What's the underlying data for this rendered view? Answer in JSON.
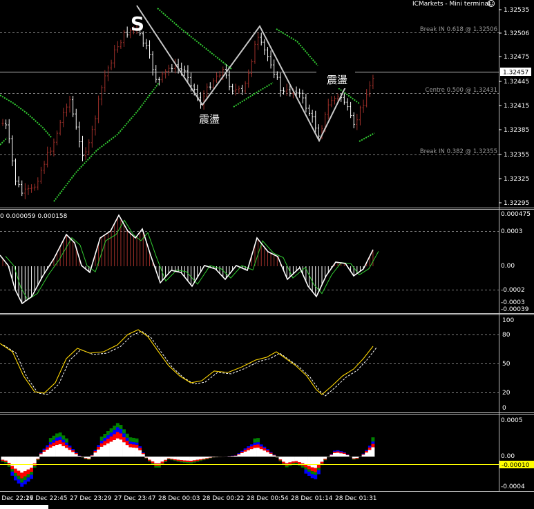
{
  "window": {
    "title": "ICMarkets - Mini terminal",
    "status_icon": "smiley-icon"
  },
  "main_chart": {
    "price_labels": [
      "1.32535",
      "1.32506",
      "1.32475",
      "1.32445",
      "1.32415",
      "1.32385",
      "1.32355",
      "1.32325",
      "1.32295"
    ],
    "current_price": "1.32457",
    "levels": [
      {
        "text": "Break IN 0.618 @ 1.32506"
      },
      {
        "text": "Centre 0.500 @ 1.32431"
      },
      {
        "text": "Break IN 0.382 @ 1.32355"
      }
    ],
    "annotations": {
      "signal": "S",
      "range_left": "震盪",
      "range_right": "震盪"
    }
  },
  "macd_panel": {
    "info": "0 0.000059 0.000158",
    "scale": [
      "0.000475",
      "0.0003",
      "0.00",
      "-0.0002",
      "-0.0003",
      "-0.00039"
    ]
  },
  "stoch_panel": {
    "scale": [
      "100",
      "80",
      "50",
      "20",
      "0"
    ]
  },
  "momentum_panel": {
    "scale": [
      "0.0005",
      "0.00",
      "-0.00010",
      "-0.0004"
    ]
  },
  "time_axis": [
    "27 Dec 22:16",
    "27 Dec 22:45",
    "27 Dec 23:29",
    "27 Dec 23:47",
    "28 Dec 00:03",
    "28 Dec 00:22",
    "28 Dec 00:54",
    "28 Dec 01:14",
    "28 Dec 01:31"
  ],
  "colors": {
    "bull": "#a0302a",
    "bear": "#ffffff",
    "ma": "#32cd32",
    "signal": "#ffd700",
    "grid": "#c0c0c0"
  }
}
